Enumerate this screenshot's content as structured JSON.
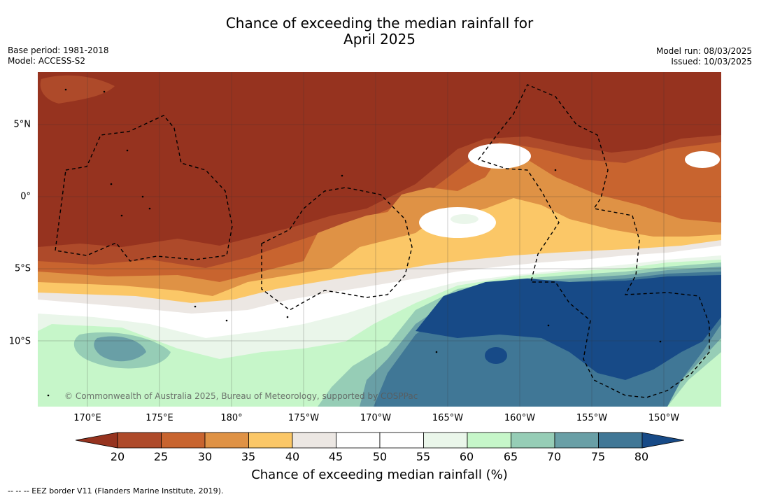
{
  "title": {
    "line1": "Chance of exceeding the median rainfall for",
    "line2": "April 2025"
  },
  "meta": {
    "base_period": "Base period: 1981-2018",
    "model": "Model: ACCESS-S2",
    "model_run": "Model run: 08/03/2025",
    "issued": "Issued: 10/03/2025"
  },
  "copyright": "© Commonwealth of Australia 2025, Bureau of Meteorology, supported by COSPPac",
  "eez_note": "-- -- -- EEZ border V11 (Flanders Marine Institute, 2019).",
  "map": {
    "lon_labels": [
      "170°E",
      "175°E",
      "180°",
      "175°W",
      "170°W",
      "165°W",
      "160°W",
      "155°W",
      "150°W"
    ],
    "lat_labels": [
      "5°N",
      "0°",
      "5°S",
      "10°S"
    ]
  },
  "colorbar": {
    "label": "Chance of exceeding median rainfall (%)",
    "ticks": [
      "20",
      "25",
      "30",
      "35",
      "40",
      "45",
      "50",
      "55",
      "60",
      "65",
      "70",
      "75",
      "80"
    ],
    "colors": [
      "#96331f",
      "#ae4a2a",
      "#c8642f",
      "#df9245",
      "#fbc767",
      "#ece7e3",
      "#ffffff",
      "#ffffff",
      "#eaf6ea",
      "#c6f6c9",
      "#96cdb6",
      "#699fa6",
      "#407796",
      "#174a87"
    ]
  }
}
